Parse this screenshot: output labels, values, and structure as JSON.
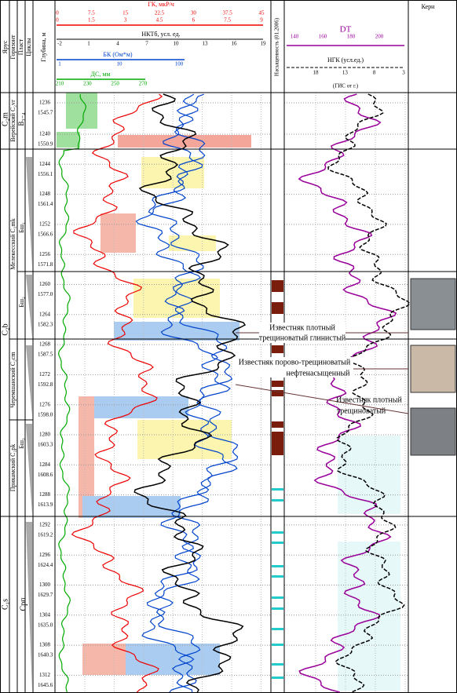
{
  "header": {
    "columns": [
      "Ярус",
      "Горизонт",
      "Пласт",
      "Циклы",
      "Глубина, м"
    ],
    "saturation": "Насыщенность (01.2006)",
    "core": "Керн"
  },
  "scales": {
    "gk": {
      "label": "ГК, мкР/ч",
      "ticks_top": [
        0,
        7.5,
        15,
        22.5,
        30,
        37.5,
        45
      ],
      "ticks_bottom": [
        0,
        1.5,
        3,
        4.5,
        6,
        7.5,
        9
      ]
    },
    "nkt": {
      "label": "НКТб, усл. ед.",
      "ticks": [
        -2,
        1,
        4,
        7,
        10,
        13,
        16,
        19
      ]
    },
    "bk": {
      "label": "БК (Ом*м)",
      "ticks": [
        1,
        10,
        100
      ]
    },
    "ds": {
      "label": "ДС, мм",
      "ticks": [
        210,
        230,
        250,
        270
      ]
    },
    "dt": {
      "label": "DT",
      "ticks": [
        140,
        160,
        180,
        200
      ]
    },
    "ngk": {
      "label": "НГК (усл.ед.)",
      "ticks": [
        18,
        13,
        8,
        3
      ],
      "note": "(ГИС от г.)"
    }
  },
  "strat": {
    "stages": [
      "C₂m",
      "C₂b",
      "C₁s"
    ],
    "horizons": [
      "Верейский C₂vr",
      "Мелекесский C₂mk",
      "Черемшанский C₂cm",
      "Прикамский C₂pk",
      "Срп"
    ],
    "beds": [
      "В₃₋₄",
      "Бш₁",
      "Бш₂",
      "Бш₃"
    ]
  },
  "depths": [
    [
      "1236",
      "1545.7"
    ],
    [
      "1240",
      "1550.9"
    ],
    [
      "1244",
      "1556.1"
    ],
    [
      "1248",
      "1561.4"
    ],
    [
      "1252",
      "1566.6"
    ],
    [
      "1256",
      "1571.8"
    ],
    [
      "1260",
      "1577.0"
    ],
    [
      "1264",
      "1582.3"
    ],
    [
      "1268",
      "1587.5"
    ],
    [
      "1272",
      "1592.8"
    ],
    [
      "1276",
      "1598.0"
    ],
    [
      "1280",
      "1603.3"
    ],
    [
      "1284",
      "1608.6"
    ],
    [
      "1288",
      "1613.9"
    ],
    [
      "1292",
      "1619.2"
    ],
    [
      "1296",
      "1624.4"
    ],
    [
      "1300",
      "1629.7"
    ],
    [
      "1304",
      "1635.0"
    ],
    [
      "1308",
      "1640.3"
    ],
    [
      "1312",
      "1645.6"
    ]
  ],
  "annotations": [
    [
      "Известняк плотный",
      "трещиноватый глинистый"
    ],
    [
      "Известняк порово-трещиноватый",
      "нефтенасыщенный"
    ],
    [
      "Известняк плотный",
      "трещиноватый"
    ]
  ]
}
